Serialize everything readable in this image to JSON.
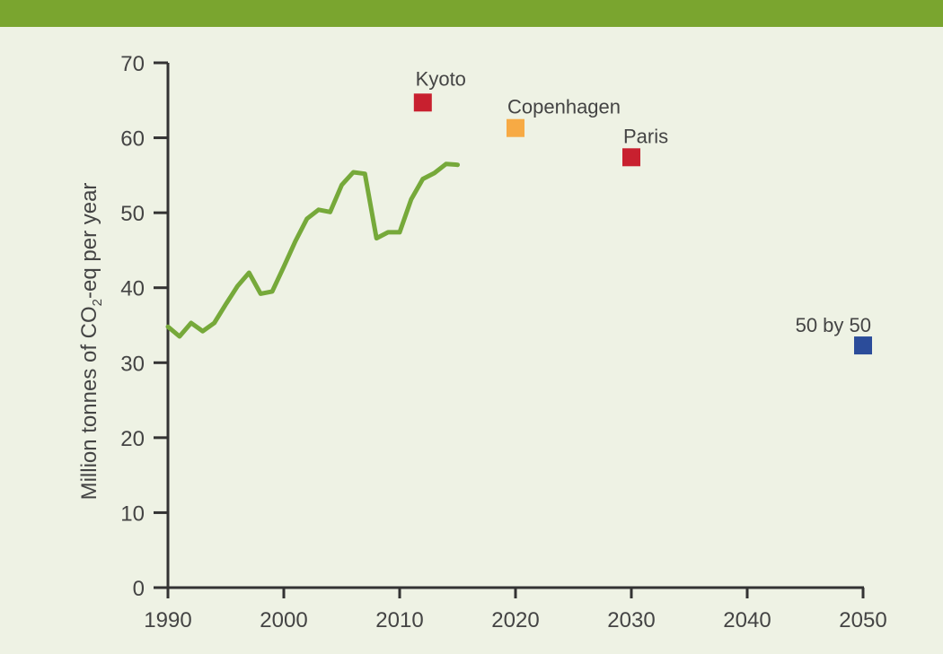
{
  "colors": {
    "header_bar": "#7aa52f",
    "background": "#eef2e4",
    "line": "#76a93a",
    "axis": "#333333",
    "target_red": "#c8202f",
    "target_orange": "#f7aa44",
    "target_blue": "#2b4c9a"
  },
  "chart_data": {
    "type": "line",
    "title": "",
    "xlabel": "",
    "ylabel": {
      "prefix": "Million tonnes of CO",
      "subscript": "2",
      "suffix": "-eq per year"
    },
    "xlim": [
      1990,
      2050
    ],
    "ylim": [
      0,
      70
    ],
    "x_ticks": [
      1990,
      2000,
      2010,
      2020,
      2030,
      2040,
      2050
    ],
    "y_ticks": [
      0,
      10,
      20,
      30,
      40,
      50,
      60,
      70
    ],
    "grid": false,
    "series": [
      {
        "x": [
          1990,
          1991,
          1992,
          1993,
          1994,
          1995,
          1996,
          1997,
          1998,
          1999,
          2000,
          2001,
          2002,
          2003,
          2004,
          2005,
          2006,
          2007,
          2008,
          2009,
          2010,
          2011,
          2012,
          2013,
          2014,
          2015
        ],
        "y": [
          34.8,
          33.5,
          35.3,
          34.2,
          35.3,
          37.8,
          40.2,
          42.0,
          39.2,
          39.5,
          42.8,
          46.2,
          49.2,
          50.4,
          50.1,
          53.7,
          55.4,
          55.2,
          46.6,
          47.4,
          47.4,
          51.8,
          54.5,
          55.3,
          56.5,
          56.4
        ]
      }
    ],
    "targets": [
      {
        "label": "Kyoto",
        "x": 2012,
        "y": 64.7,
        "color": "#c8202f",
        "label_pos": "above"
      },
      {
        "label": "Copenhagen",
        "x": 2020,
        "y": 61.3,
        "color": "#f7aa44",
        "label_pos": "above-right"
      },
      {
        "label": "Paris",
        "x": 2030,
        "y": 57.4,
        "color": "#c8202f",
        "label_pos": "above-right"
      },
      {
        "label": "50 by 50",
        "x": 2050,
        "y": 32.3,
        "color": "#2b4c9a",
        "label_pos": "above-left"
      }
    ]
  }
}
